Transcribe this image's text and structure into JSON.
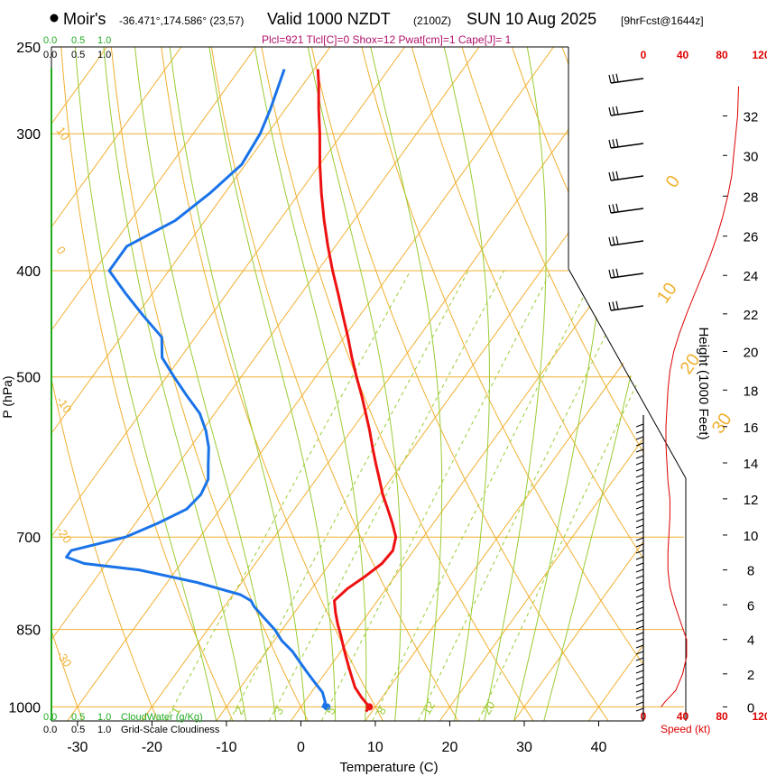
{
  "header": {
    "brand": "Moir's",
    "location": "-36.471°,174.586° (23,57)",
    "valid": "Valid 1000 NZDT",
    "utc": "(2100Z)",
    "date": "SUN 10 Aug 2025",
    "forecast": "[9hrFcst@1644z]",
    "indices": "Plcl=921 Tlcl[C]=0 Shox=12 Pwat[cm]=1 Cape[J]= 1"
  },
  "colors": {
    "temp": "#ee1111",
    "dewpoint": "#1a73e8",
    "isotherm": "#f0b030",
    "dry_adiabat": "#f0b030",
    "moist_adiabat": "#99cc33",
    "mixing_ratio": "#99cc33",
    "wind_profile": "#dd0000",
    "cloud": "#22aa22"
  },
  "chart_data": {
    "type": "line",
    "title": "Skew-T log-P sounding",
    "xlabel": "Temperature (C)",
    "ylabel": "P (hPa)",
    "right_label": "Height (1000 Feet)",
    "pressure_range": [
      1030,
      250
    ],
    "temperature_range_at_1000hPa": [
      -33.5,
      46
    ],
    "pressure_ticks": [
      250,
      300,
      400,
      500,
      700,
      850,
      1000
    ],
    "temperature_ticks": [
      -30,
      -20,
      -10,
      0,
      10,
      20,
      30,
      40
    ],
    "height_ticks": [
      0,
      2,
      4,
      6,
      8,
      10,
      12,
      14,
      16,
      18,
      20,
      22,
      24,
      26,
      28,
      30,
      32
    ],
    "height_tick_pressures": [
      1000,
      933,
      868,
      807,
      750,
      697,
      646,
      599,
      555,
      514,
      474,
      438,
      404,
      372,
      342,
      314,
      289
    ],
    "isotherm_labels": [
      {
        "value": "0",
        "T": 0,
        "p": 334
      },
      {
        "value": "10",
        "T": 10,
        "p": 422
      },
      {
        "value": "20",
        "T": 20,
        "p": 490
      },
      {
        "value": "30",
        "T": 30,
        "p": 555
      }
    ],
    "dry_adiabat_labels": [
      {
        "value": "10",
        "T": -33,
        "p": 298
      },
      {
        "value": "0",
        "T": -33,
        "p": 383
      },
      {
        "value": "-10",
        "T": -33,
        "p": 525
      },
      {
        "value": "-20",
        "T": -33,
        "p": 690
      },
      {
        "value": "-30",
        "T": -33,
        "p": 895
      }
    ],
    "mixing_ratio_labels": [
      "1",
      "2",
      "3",
      "5",
      "8",
      "12",
      "20"
    ],
    "mixing_ratio_values": [
      1,
      2,
      3,
      5,
      8,
      12,
      20
    ],
    "series": [
      {
        "name": "Temperature",
        "p": [
          1010,
          1000,
          980,
          960,
          940,
          920,
          900,
          880,
          860,
          840,
          820,
          800,
          780,
          760,
          740,
          720,
          700,
          680,
          660,
          640,
          620,
          600,
          580,
          560,
          540,
          520,
          500,
          480,
          460,
          440,
          420,
          400,
          380,
          360,
          340,
          320,
          300,
          285,
          270,
          262
        ],
        "T": [
          9.2,
          9.2,
          7.2,
          5.4,
          4.0,
          2.6,
          1.2,
          -0.2,
          -1.6,
          -3.1,
          -4.5,
          -5.8,
          -5.2,
          -4.0,
          -3.0,
          -2.8,
          -3.7,
          -5.5,
          -7.5,
          -9.6,
          -11.5,
          -13.5,
          -15.5,
          -17.5,
          -19.7,
          -22.0,
          -24.5,
          -27.0,
          -29.5,
          -32.2,
          -35.0,
          -38.0,
          -41.0,
          -44.0,
          -47.0,
          -50.0,
          -53.0,
          -55.5,
          -58.0,
          -59.5
        ]
      },
      {
        "name": "Dewpoint",
        "p": [
          1002,
          990,
          970,
          950,
          930,
          910,
          890,
          870,
          850,
          830,
          810,
          800,
          790,
          770,
          750,
          740,
          730,
          720,
          700,
          680,
          660,
          640,
          620,
          600,
          580,
          560,
          540,
          520,
          500,
          480,
          460,
          440,
          420,
          400,
          380,
          360,
          340,
          320,
          300,
          285,
          262
        ],
        "T": [
          3.0,
          2.8,
          1.5,
          -0.5,
          -2.5,
          -4.5,
          -6.5,
          -9.0,
          -11.0,
          -13.5,
          -16.0,
          -17.0,
          -19.0,
          -26.0,
          -35.0,
          -43.0,
          -46.0,
          -46.0,
          -40.0,
          -37.0,
          -34.5,
          -34.0,
          -34.5,
          -36.0,
          -37.5,
          -39.5,
          -42.0,
          -45.5,
          -49.0,
          -52.5,
          -54.5,
          -59.0,
          -63.5,
          -68.0,
          -68.0,
          -64.0,
          -62.0,
          -60.5,
          -61.0,
          -62.0,
          -64.0
        ]
      }
    ],
    "surface_points": [
      {
        "name": "surface-temperature",
        "T": 9.2,
        "p": 1000
      },
      {
        "name": "surface-dewpoint",
        "T": 3.5,
        "p": 1000
      }
    ],
    "wind_speed_ticks": [
      0,
      40,
      80,
      120
    ],
    "wind_speed_label": "Speed (kt)",
    "wind_speed_profile": {
      "height_kft": [
        0,
        0.3,
        1,
        2,
        3,
        4,
        5,
        6,
        7,
        8,
        9,
        10,
        11,
        12,
        13,
        14,
        15,
        16,
        17,
        18,
        19,
        20,
        21,
        22,
        23,
        24,
        25,
        26,
        27,
        28,
        29,
        30,
        31,
        32,
        33.5
      ],
      "speed_kt": [
        18,
        22,
        33,
        40,
        44,
        44,
        38,
        32,
        27,
        25,
        25,
        26,
        27,
        27,
        25,
        24,
        23,
        23,
        24,
        25,
        27,
        31,
        37,
        44,
        52,
        60,
        68,
        75,
        81,
        86,
        90,
        92,
        94,
        96,
        97
      ]
    },
    "cloud_scales": {
      "cloud_water_ticks": [
        "0.0",
        "0.5",
        "1.0"
      ],
      "cloud_water_label": "CloudWater (g/Kg)",
      "cloudiness_ticks": [
        "0.0",
        "0.5",
        "1.0"
      ],
      "cloudiness_label": "Grid-Scale Cloudiness"
    }
  }
}
